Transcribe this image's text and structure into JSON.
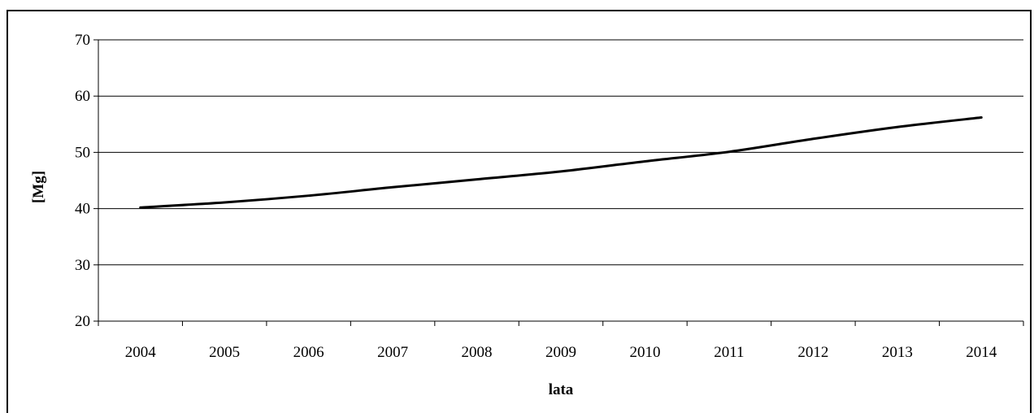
{
  "chart_data": {
    "type": "line",
    "title": "",
    "xlabel": "lata",
    "ylabel": "[Mg]",
    "categories": [
      "2004",
      "2005",
      "2006",
      "2007",
      "2008",
      "2009",
      "2010",
      "2011",
      "2012",
      "2013",
      "2014"
    ],
    "series": [
      {
        "values": [
          40.2,
          41.1,
          42.3,
          43.8,
          45.2,
          46.6,
          48.4,
          50.1,
          52.4,
          54.5,
          56.2
        ],
        "color": "#000000"
      }
    ],
    "ylim": [
      20,
      70
    ],
    "yticks": [
      "20",
      "30",
      "40",
      "50",
      "60",
      "70"
    ],
    "grid": "horizontal",
    "legend": "none"
  }
}
